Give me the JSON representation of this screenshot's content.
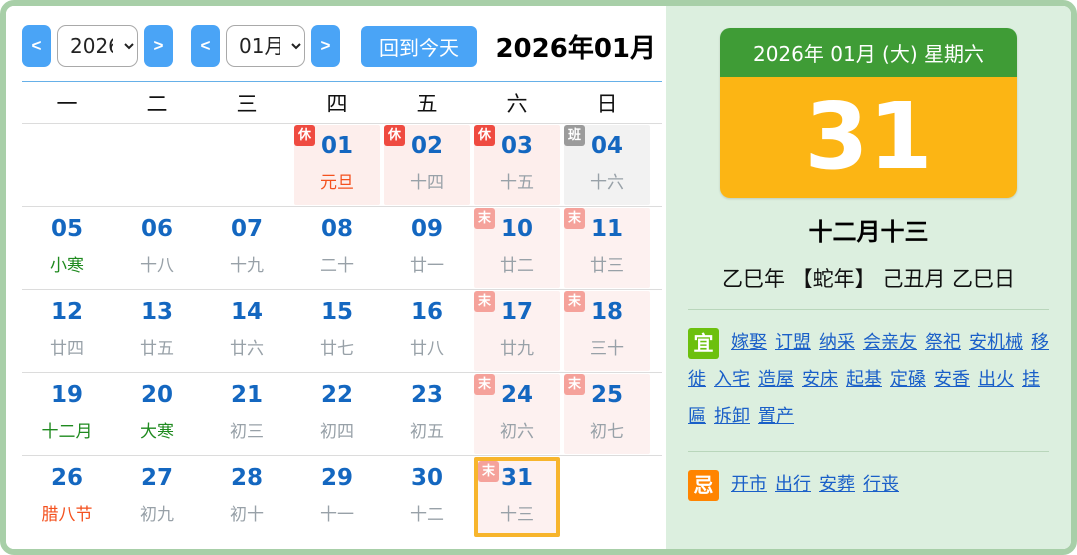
{
  "toolbar": {
    "year_prev": "<",
    "year_value": "2026",
    "year_next": ">",
    "month_prev": "<",
    "month_value": "01月",
    "month_next": ">",
    "today_button": "回到今天",
    "title": "2026年01月"
  },
  "calendar": {
    "weekdays": [
      "一",
      "二",
      "三",
      "四",
      "五",
      "六",
      "日"
    ],
    "badge_legend": {
      "rest": "休",
      "work": "班",
      "weekend": "末"
    },
    "rows": [
      [
        null,
        null,
        null,
        {
          "day": "01",
          "lunar": "元旦",
          "lunar_type": "festival",
          "badge": "休",
          "badge_type": "rest",
          "type": "holiday"
        },
        {
          "day": "02",
          "lunar": "十四",
          "lunar_type": "normal",
          "badge": "休",
          "badge_type": "rest",
          "type": "holiday"
        },
        {
          "day": "03",
          "lunar": "十五",
          "lunar_type": "normal",
          "badge": "休",
          "badge_type": "rest",
          "type": "holiday"
        },
        {
          "day": "04",
          "lunar": "十六",
          "lunar_type": "normal",
          "badge": "班",
          "badge_type": "work",
          "type": "work"
        }
      ],
      [
        {
          "day": "05",
          "lunar": "小寒",
          "lunar_type": "term",
          "type": "normal"
        },
        {
          "day": "06",
          "lunar": "十八",
          "lunar_type": "normal",
          "type": "normal"
        },
        {
          "day": "07",
          "lunar": "十九",
          "lunar_type": "normal",
          "type": "normal"
        },
        {
          "day": "08",
          "lunar": "二十",
          "lunar_type": "normal",
          "type": "normal"
        },
        {
          "day": "09",
          "lunar": "廿一",
          "lunar_type": "normal",
          "type": "normal"
        },
        {
          "day": "10",
          "lunar": "廿二",
          "lunar_type": "normal",
          "badge": "末",
          "badge_type": "weekend",
          "type": "weekend"
        },
        {
          "day": "11",
          "lunar": "廿三",
          "lunar_type": "normal",
          "badge": "末",
          "badge_type": "weekend",
          "type": "weekend"
        }
      ],
      [
        {
          "day": "12",
          "lunar": "廿四",
          "lunar_type": "normal",
          "type": "normal"
        },
        {
          "day": "13",
          "lunar": "廿五",
          "lunar_type": "normal",
          "type": "normal"
        },
        {
          "day": "14",
          "lunar": "廿六",
          "lunar_type": "normal",
          "type": "normal"
        },
        {
          "day": "15",
          "lunar": "廿七",
          "lunar_type": "normal",
          "type": "normal"
        },
        {
          "day": "16",
          "lunar": "廿八",
          "lunar_type": "normal",
          "type": "normal"
        },
        {
          "day": "17",
          "lunar": "廿九",
          "lunar_type": "normal",
          "badge": "末",
          "badge_type": "weekend",
          "type": "weekend"
        },
        {
          "day": "18",
          "lunar": "三十",
          "lunar_type": "normal",
          "badge": "末",
          "badge_type": "weekend",
          "type": "weekend"
        }
      ],
      [
        {
          "day": "19",
          "lunar": "十二月",
          "lunar_type": "term",
          "type": "normal"
        },
        {
          "day": "20",
          "lunar": "大寒",
          "lunar_type": "term",
          "type": "normal"
        },
        {
          "day": "21",
          "lunar": "初三",
          "lunar_type": "normal",
          "type": "normal"
        },
        {
          "day": "22",
          "lunar": "初四",
          "lunar_type": "normal",
          "type": "normal"
        },
        {
          "day": "23",
          "lunar": "初五",
          "lunar_type": "normal",
          "type": "normal"
        },
        {
          "day": "24",
          "lunar": "初六",
          "lunar_type": "normal",
          "badge": "末",
          "badge_type": "weekend",
          "type": "weekend"
        },
        {
          "day": "25",
          "lunar": "初七",
          "lunar_type": "normal",
          "badge": "末",
          "badge_type": "weekend",
          "type": "weekend"
        }
      ],
      [
        {
          "day": "26",
          "lunar": "腊八节",
          "lunar_type": "festival",
          "type": "normal"
        },
        {
          "day": "27",
          "lunar": "初九",
          "lunar_type": "normal",
          "type": "normal"
        },
        {
          "day": "28",
          "lunar": "初十",
          "lunar_type": "normal",
          "type": "normal"
        },
        {
          "day": "29",
          "lunar": "十一",
          "lunar_type": "normal",
          "type": "normal"
        },
        {
          "day": "30",
          "lunar": "十二",
          "lunar_type": "normal",
          "type": "normal"
        },
        {
          "day": "31",
          "lunar": "十三",
          "lunar_type": "normal",
          "badge": "末",
          "badge_type": "weekend",
          "type": "weekend",
          "selected": true
        },
        null
      ]
    ]
  },
  "detail": {
    "card_header": "2026年 01月 (大) 星期六",
    "day_number": "31",
    "lunar_date": "十二月十三",
    "ganzhi": "乙巳年 【蛇年】 己丑月 乙巳日",
    "yi_label": "宜",
    "yi_items": [
      "嫁娶",
      "订盟",
      "纳采",
      "会亲友",
      "祭祀",
      "安机械",
      "移徙",
      "入宅",
      "造屋",
      "安床",
      "起基",
      "定磉",
      "安香",
      "出火",
      "挂匾",
      "拆卸",
      "置产"
    ],
    "ji_label": "忌",
    "ji_items": [
      "开市",
      "出行",
      "安葬",
      "行丧"
    ]
  },
  "colors": {
    "accent_blue": "#4aa4f6",
    "day_number_blue": "#1467c0",
    "holiday_badge_red": "#ef4b41",
    "work_badge_gray": "#9b9b9b",
    "weekend_badge_pink": "#f5a29b",
    "selected_border_orange": "#f7b52c",
    "card_header_green": "#3f9c36",
    "card_body_orange": "#fcb514",
    "yi_green": "#6cc00e",
    "ji_orange": "#ff8400",
    "frame_green": "#a8cfa8"
  }
}
